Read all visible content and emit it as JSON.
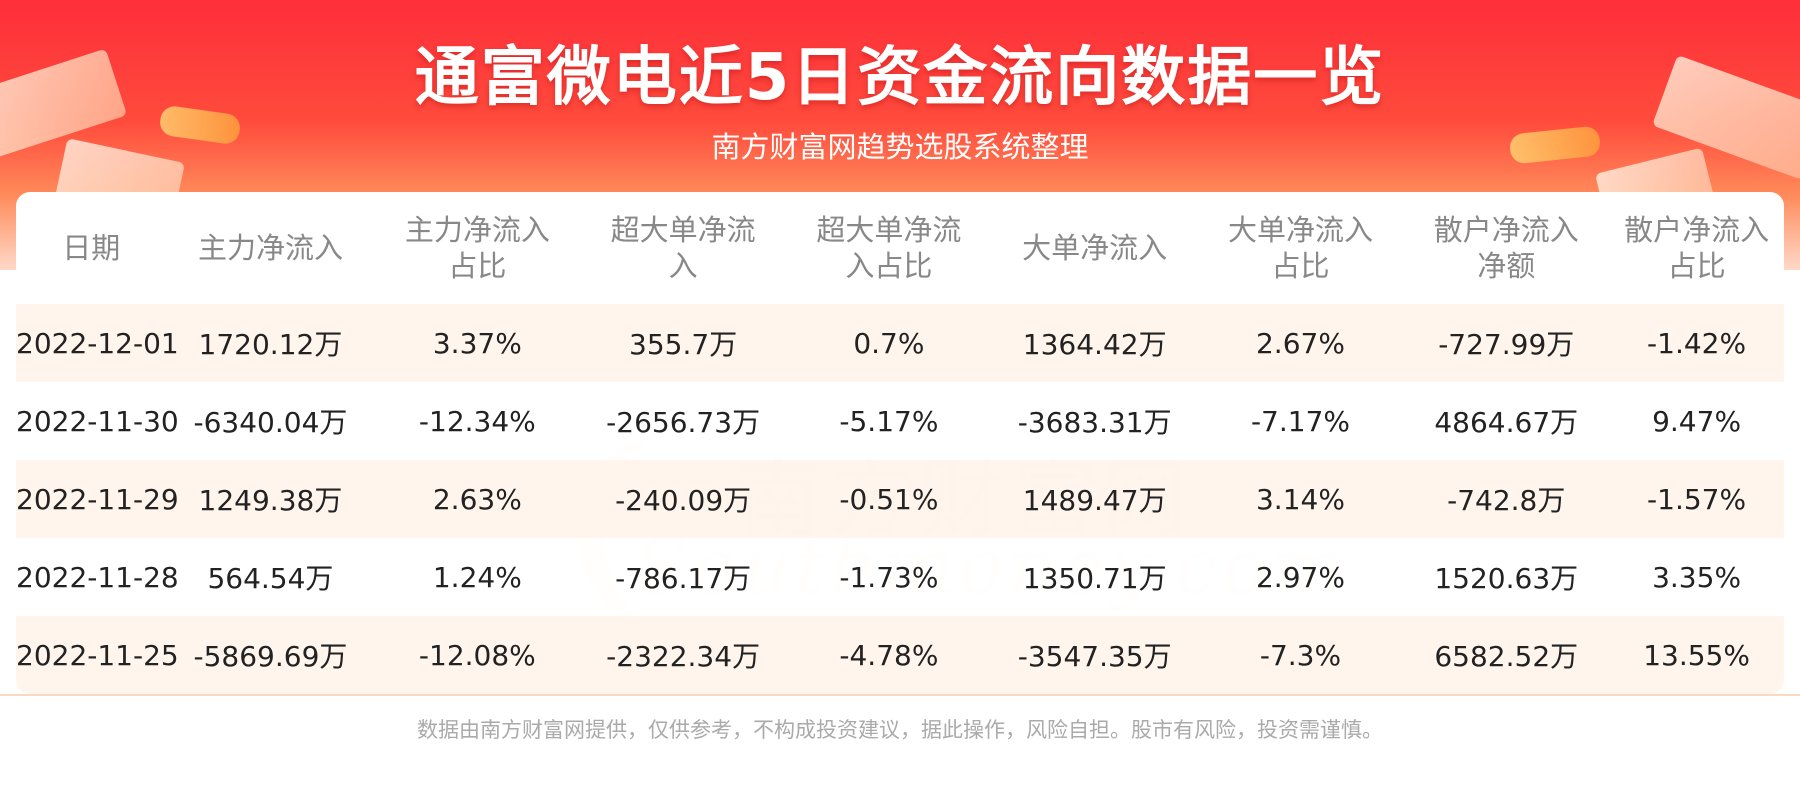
{
  "header": {
    "title": "通富微电近5日资金流向数据一览",
    "subtitle": "南方财富网趋势选股系统整理"
  },
  "watermark": {
    "cn": "南方财富网",
    "en": "Southmoney.com"
  },
  "table": {
    "headers": [
      [
        "日期"
      ],
      [
        "主力净流入"
      ],
      [
        "主力净流入",
        "占比"
      ],
      [
        "超大单净流",
        "入"
      ],
      [
        "超大单净流",
        "入占比"
      ],
      [
        "大单净流入"
      ],
      [
        "大单净流入",
        "占比"
      ],
      [
        "散户净流入",
        "净额"
      ],
      [
        "散户净流入",
        "占比"
      ]
    ],
    "rows": [
      [
        "2022-12-01",
        "1720.12万",
        "3.37%",
        "355.7万",
        "0.7%",
        "1364.42万",
        "2.67%",
        "-727.99万",
        "-1.42%"
      ],
      [
        "2022-11-30",
        "-6340.04万",
        "-12.34%",
        "-2656.73万",
        "-5.17%",
        "-3683.31万",
        "-7.17%",
        "4864.67万",
        "9.47%"
      ],
      [
        "2022-11-29",
        "1249.38万",
        "2.63%",
        "-240.09万",
        "-0.51%",
        "1489.47万",
        "3.14%",
        "-742.8万",
        "-1.57%"
      ],
      [
        "2022-11-28",
        "564.54万",
        "1.24%",
        "-786.17万",
        "-1.73%",
        "1350.71万",
        "2.97%",
        "1520.63万",
        "3.35%"
      ],
      [
        "2022-11-25",
        "-5869.69万",
        "-12.08%",
        "-2322.34万",
        "-4.78%",
        "-3547.35万",
        "-7.3%",
        "6582.52万",
        "13.55%"
      ]
    ]
  },
  "footer": {
    "disclaimer": "数据由南方财富网提供，仅供参考，不构成投资建议，据此操作，风险自担。股市有风险，投资需谨慎。"
  },
  "colors": {
    "banner_red": "#fe2f3a",
    "row_tint": "#fff4ec",
    "header_text": "#888888",
    "cell_text": "#222222"
  }
}
